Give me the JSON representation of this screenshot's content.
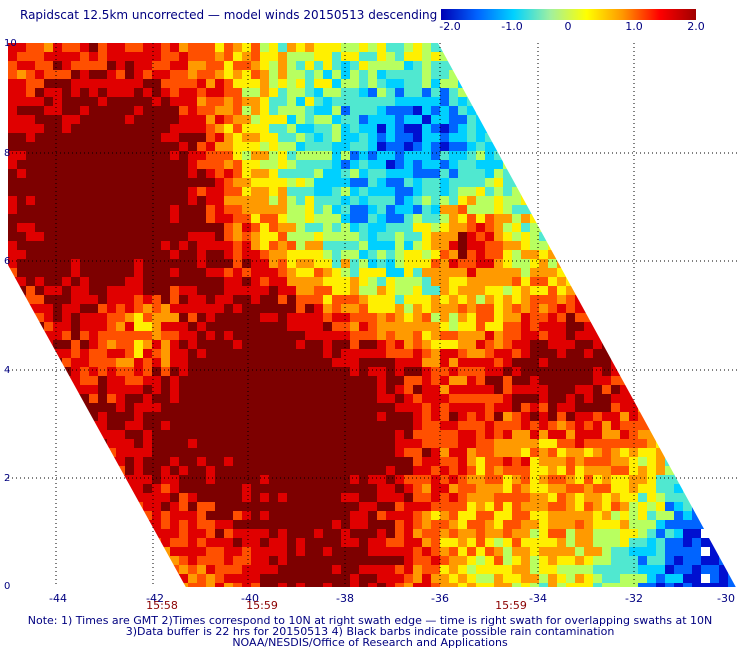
{
  "title": "Rapidscat 12.5km uncorrected — model winds 20150513 descending",
  "colorbar": {
    "stops": [
      "#0000b4",
      "#0064ff",
      "#00d2ff",
      "#a0f0a0",
      "#ffff00",
      "#ff9600",
      "#ff0000",
      "#a00000"
    ],
    "ticks": [
      "-2.0",
      "-1.0",
      "0",
      "1.0",
      "2.0"
    ]
  },
  "map": {
    "x_ticks": [
      "-44",
      "-42",
      "-40",
      "-38",
      "-36",
      "-34",
      "-32",
      "-30"
    ],
    "y_ticks": [
      "0",
      "2",
      "4",
      "6",
      "8",
      "10"
    ],
    "times": [
      "15:58",
      "15:59",
      "15:59"
    ],
    "colors": {
      "dark_red": "#7d0000",
      "red": "#e00000",
      "orange_red": "#ff5000",
      "orange": "#ff9a00",
      "yellow": "#fff000",
      "light_green": "#b8ff60",
      "aqua": "#50e8d0",
      "cyan": "#00d0ff",
      "blue": "#0064ff",
      "dark_blue": "#0010d0",
      "white_gap": "#ffffff",
      "grid": "#000000"
    }
  },
  "notes": [
    "Note: 1) Times are GMT 2)Times correspond to 10N at right swath edge — time is right swath for overlapping swaths at 10N",
    "3)Data buffer is 22 hrs for 20150513 4) Black barbs indicate possible rain contamination",
    "NOAA/NESDIS/Office of Research and Applications"
  ]
}
